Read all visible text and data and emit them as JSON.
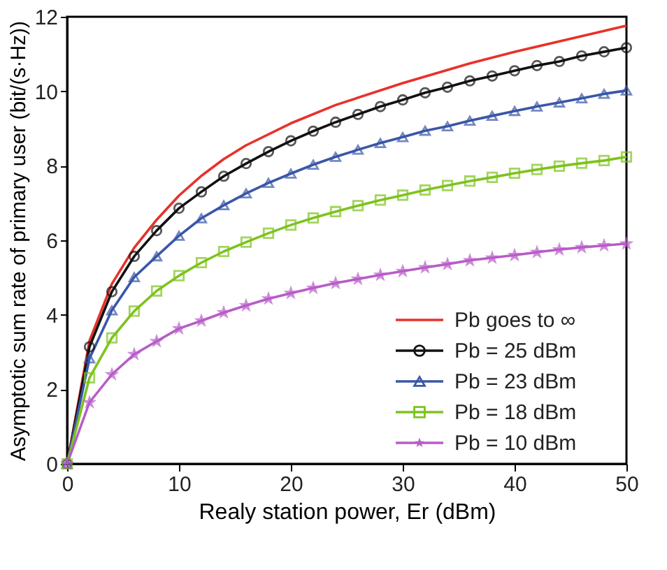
{
  "chart_data": {
    "type": "line",
    "xlabel": "Realy station power, Er (dBm)",
    "ylabel": "Asymptotic sum rate of primary user (bit/(s·Hz))",
    "xlim": [
      0,
      50
    ],
    "xticks": [
      0,
      10,
      20,
      30,
      40,
      50
    ],
    "ylim": [
      0,
      12
    ],
    "yticks": [
      0,
      2,
      4,
      6,
      8,
      10,
      12
    ],
    "grid": false,
    "legend": "bottom right",
    "series": [
      {
        "name": "Pb goes to ∞",
        "color": "#e8312a",
        "marker": "none",
        "x": [
          0,
          2,
          4,
          6,
          8,
          10,
          12,
          14,
          16,
          20,
          24,
          30,
          36,
          40,
          44,
          50
        ],
        "values": [
          0,
          3.3,
          4.83,
          5.8,
          6.55,
          7.2,
          7.73,
          8.18,
          8.55,
          9.14,
          9.63,
          10.22,
          10.75,
          11.06,
          11.34,
          11.76
        ]
      },
      {
        "name": "Pb = 25 dBm",
        "color": "#111111",
        "marker": "circle",
        "x": [
          0,
          2,
          4,
          6,
          8,
          10,
          12,
          14,
          16,
          18,
          20,
          22,
          24,
          26,
          28,
          30,
          32,
          34,
          36,
          38,
          40,
          42,
          44,
          46,
          48,
          50
        ],
        "values": [
          0,
          3.14,
          4.62,
          5.57,
          6.26,
          6.86,
          7.3,
          7.72,
          8.06,
          8.38,
          8.67,
          8.93,
          9.17,
          9.38,
          9.59,
          9.77,
          9.96,
          10.11,
          10.28,
          10.41,
          10.55,
          10.69,
          10.8,
          10.95,
          11.06,
          11.17
        ]
      },
      {
        "name": "Pb = 23 dBm",
        "color": "#3a56a8",
        "marker": "triangle",
        "x": [
          0,
          2,
          4,
          6,
          8,
          10,
          12,
          14,
          16,
          18,
          20,
          22,
          24,
          26,
          28,
          30,
          32,
          34,
          36,
          38,
          40,
          42,
          44,
          46,
          48,
          50
        ],
        "values": [
          0,
          2.83,
          4.12,
          5.01,
          5.57,
          6.12,
          6.59,
          6.94,
          7.26,
          7.54,
          7.79,
          8.03,
          8.24,
          8.43,
          8.61,
          8.77,
          8.94,
          9.06,
          9.21,
          9.34,
          9.47,
          9.59,
          9.7,
          9.81,
          9.93,
          10.02
        ]
      },
      {
        "name": "Pb = 18 dBm",
        "color": "#7dc31c",
        "marker": "square",
        "x": [
          0,
          2,
          4,
          6,
          8,
          10,
          12,
          14,
          16,
          18,
          20,
          22,
          24,
          26,
          28,
          30,
          32,
          34,
          36,
          38,
          40,
          42,
          44,
          46,
          48,
          50
        ],
        "values": [
          0,
          2.31,
          3.38,
          4.1,
          4.64,
          5.05,
          5.4,
          5.7,
          5.95,
          6.19,
          6.41,
          6.6,
          6.77,
          6.93,
          7.08,
          7.21,
          7.35,
          7.47,
          7.59,
          7.69,
          7.8,
          7.9,
          7.99,
          8.07,
          8.14,
          8.24
        ]
      },
      {
        "name": "Pb = 10 dBm",
        "color": "#b85cc8",
        "marker": "star",
        "x": [
          0,
          2,
          4,
          6,
          8,
          10,
          12,
          14,
          16,
          18,
          20,
          22,
          24,
          26,
          28,
          30,
          32,
          34,
          36,
          38,
          40,
          42,
          44,
          46,
          48,
          50
        ],
        "values": [
          0,
          1.65,
          2.4,
          2.94,
          3.29,
          3.63,
          3.84,
          4.06,
          4.25,
          4.43,
          4.58,
          4.72,
          4.85,
          4.96,
          5.07,
          5.17,
          5.27,
          5.36,
          5.46,
          5.53,
          5.6,
          5.68,
          5.75,
          5.81,
          5.86,
          5.91
        ]
      }
    ]
  }
}
